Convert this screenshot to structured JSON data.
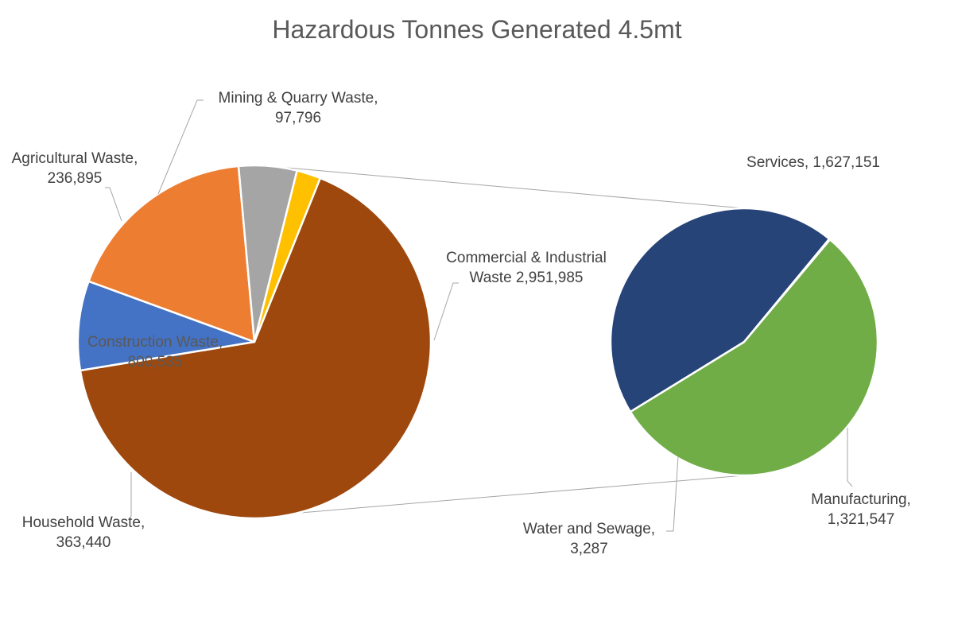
{
  "chart_data": {
    "type": "pie",
    "subtype": "pie-of-pie",
    "title": "Hazardous Tonnes Generated 4.5mt",
    "primary": {
      "slices": [
        {
          "name": "Commercial & Industrial Waste",
          "label_lines": [
            "Commercial & Industrial",
            "Waste  2,951,985"
          ],
          "value": 2951985,
          "color": "#9E480E"
        },
        {
          "name": "Household Waste",
          "label_lines": [
            "Household Waste,",
            "363,440"
          ],
          "value": 363440,
          "color": "#4472C4"
        },
        {
          "name": "Construction Waste",
          "label_lines": [
            "Construction Waste,",
            "800,535"
          ],
          "value": 800535,
          "color": "#ED7D31"
        },
        {
          "name": "Agricultural Waste",
          "label_lines": [
            "Agricultural Waste,",
            "236,895"
          ],
          "value": 236895,
          "color": "#A5A5A5"
        },
        {
          "name": "Mining & Quarry Waste",
          "label_lines": [
            "Mining & Quarry Waste,",
            "97,796"
          ],
          "value": 97796,
          "color": "#FFC000"
        }
      ]
    },
    "secondary": {
      "breakdown_of": "Commercial & Industrial Waste",
      "slices": [
        {
          "name": "Services",
          "label_lines": [
            "Services, 1,627,151"
          ],
          "value": 1627151,
          "color": "#70AD47"
        },
        {
          "name": "Manufacturing",
          "label_lines": [
            "Manufacturing,",
            "1,321,547"
          ],
          "value": 1321547,
          "color": "#264478"
        },
        {
          "name": "Water and Sewage",
          "label_lines": [
            "Water and Sewage,",
            "3,287"
          ],
          "value": 3287,
          "color": "#70AD47"
        }
      ]
    },
    "legend": "none",
    "data_labels": "category-name-and-value"
  }
}
